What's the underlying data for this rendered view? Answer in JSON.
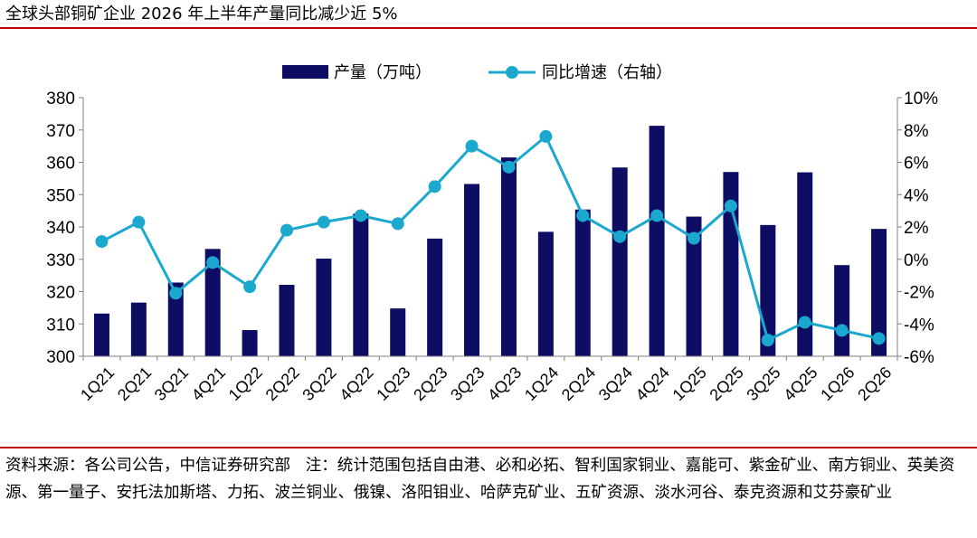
{
  "header": {
    "title": "全球头部铜矿企业 2026 年上半年产量同比减少近 5%"
  },
  "footer": {
    "source": "资料来源：各公司公告，中信证券研究部",
    "note": "注：统计范围包括自由港、必和必拓、智利国家铜业、嘉能可、紫金矿业、南方铜业、英美资源、第一量子、安托法加斯塔、力拓、波兰铜业、俄镍、洛阳钼业、哈萨克矿业、五矿资源、淡水河谷、泰克资源和艾芬豪矿业"
  },
  "colors": {
    "bar": "#0d0d63",
    "line": "#1ba8cf",
    "accent_rule": "#c00000"
  },
  "chart_data": {
    "type": "bar",
    "title": "",
    "categories": [
      "1Q21",
      "2Q21",
      "3Q21",
      "4Q21",
      "1Q22",
      "2Q22",
      "3Q22",
      "4Q22",
      "1Q23",
      "2Q23",
      "3Q23",
      "4Q23",
      "1Q24",
      "2Q24",
      "3Q24",
      "4Q24",
      "1Q25",
      "2Q25",
      "3Q25",
      "4Q25",
      "1Q26",
      "2Q26"
    ],
    "series": [
      {
        "name": "产量（万吨）",
        "type": "bar",
        "axis": "left",
        "values": [
          313.2,
          316.6,
          322.8,
          333.2,
          308.1,
          322.1,
          330.2,
          344.1,
          314.8,
          336.4,
          353.3,
          361.5,
          338.5,
          345.4,
          358.4,
          371.3,
          343.2,
          357.0,
          340.6,
          356.9,
          328.2,
          339.4
        ]
      },
      {
        "name": "同比增速（右轴）",
        "type": "line",
        "axis": "right",
        "unit": "%",
        "values": [
          1.1,
          2.3,
          -2.1,
          -0.2,
          -1.7,
          1.8,
          2.3,
          2.7,
          2.2,
          4.5,
          7.0,
          5.7,
          7.6,
          2.7,
          1.4,
          2.7,
          1.3,
          3.3,
          -5.0,
          -3.9,
          -4.4,
          -4.9
        ]
      }
    ],
    "y_left": {
      "min": 300,
      "max": 380,
      "ticks": [
        "300",
        "310",
        "320",
        "330",
        "340",
        "350",
        "360",
        "370",
        "380"
      ]
    },
    "y_right": {
      "min": -6,
      "max": 10,
      "ticks": [
        "-6%",
        "-4%",
        "-2%",
        "0%",
        "2%",
        "4%",
        "6%",
        "8%",
        "10%"
      ]
    },
    "legend_position": "top-center",
    "grid": false
  }
}
